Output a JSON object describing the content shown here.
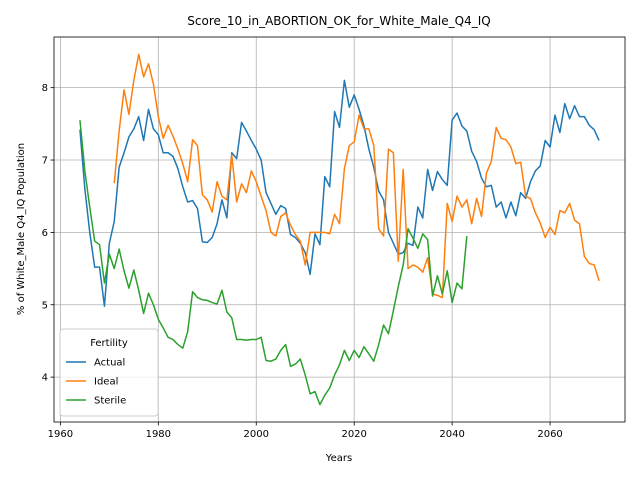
{
  "chart_data": {
    "type": "line",
    "title": "Score_10_in_ABORTION_OK_for_White_Male_Q4_IQ",
    "x_label": "Years",
    "y_label": "% of White_Male Q4_IQ Population",
    "x": [
      1964,
      1965,
      1966,
      1967,
      1968,
      1969,
      1970,
      1971,
      1972,
      1973,
      1974,
      1975,
      1976,
      1977,
      1978,
      1979,
      1980,
      1981,
      1982,
      1983,
      1984,
      1985,
      1986,
      1987,
      1988,
      1989,
      1990,
      1991,
      1992,
      1993,
      1994,
      1995,
      1996,
      1997,
      1998,
      1999,
      2000,
      2001,
      2002,
      2003,
      2004,
      2005,
      2006,
      2007,
      2008,
      2009,
      2010,
      2011,
      2012,
      2013,
      2014,
      2015,
      2016,
      2017,
      2018,
      2019,
      2020,
      2021,
      2022,
      2023,
      2024,
      2025,
      2026,
      2027,
      2028,
      2029,
      2030,
      2031,
      2032,
      2033,
      2034,
      2035,
      2036,
      2037,
      2038,
      2039,
      2040,
      2041,
      2042,
      2043,
      2044,
      2045,
      2046,
      2047,
      2048,
      2049,
      2050,
      2051,
      2052,
      2053,
      2054,
      2055,
      2056,
      2057,
      2058,
      2059,
      2060,
      2061,
      2062,
      2063,
      2064,
      2065,
      2066,
      2067,
      2068,
      2069,
      2070
    ],
    "series": [
      {
        "name": "Actual",
        "color": "#1f77b4",
        "values": [
          7.42,
          6.6,
          6.0,
          5.52,
          5.52,
          4.98,
          5.85,
          6.15,
          6.9,
          7.1,
          7.32,
          7.43,
          7.6,
          7.27,
          7.7,
          7.43,
          7.35,
          7.1,
          7.1,
          7.05,
          6.88,
          6.63,
          6.42,
          6.44,
          6.33,
          5.87,
          5.86,
          5.93,
          6.12,
          6.45,
          6.2,
          7.1,
          7.02,
          7.52,
          7.4,
          7.27,
          7.15,
          7.0,
          6.55,
          6.4,
          6.25,
          6.37,
          6.33,
          5.97,
          5.93,
          5.85,
          5.72,
          5.42,
          5.98,
          5.83,
          6.77,
          6.63,
          7.67,
          7.45,
          8.1,
          7.73,
          7.9,
          7.7,
          7.47,
          7.15,
          6.9,
          6.57,
          6.45,
          6.0,
          5.85,
          5.7,
          5.72,
          5.85,
          5.82,
          6.35,
          6.2,
          6.87,
          6.58,
          6.84,
          6.73,
          6.65,
          7.55,
          7.65,
          7.47,
          7.4,
          7.12,
          6.98,
          6.75,
          6.63,
          6.65,
          6.35,
          6.42,
          6.2,
          6.42,
          6.23,
          6.55,
          6.47,
          6.7,
          6.85,
          6.92,
          7.27,
          7.18,
          7.62,
          7.38,
          7.78,
          7.57,
          7.75,
          7.6,
          7.6,
          7.48,
          7.42,
          7.27
        ]
      },
      {
        "name": "Ideal",
        "color": "#ff7f0e",
        "values": [
          null,
          null,
          null,
          null,
          null,
          null,
          null,
          6.68,
          7.4,
          7.97,
          7.63,
          8.1,
          8.46,
          8.15,
          8.33,
          8.05,
          7.6,
          7.3,
          7.48,
          7.33,
          7.15,
          6.95,
          6.7,
          7.28,
          7.2,
          6.52,
          6.45,
          6.28,
          6.7,
          6.5,
          6.45,
          7.07,
          6.42,
          6.67,
          6.55,
          6.85,
          6.7,
          6.5,
          6.3,
          6.0,
          5.95,
          6.22,
          6.27,
          6.1,
          5.97,
          5.88,
          5.55,
          6.0,
          6.0,
          6.0,
          6.0,
          5.98,
          6.25,
          6.12,
          6.88,
          7.2,
          7.25,
          7.62,
          7.43,
          7.43,
          7.2,
          6.05,
          5.95,
          7.15,
          7.1,
          5.6,
          6.87,
          5.5,
          5.55,
          5.52,
          5.45,
          5.65,
          5.15,
          5.13,
          5.1,
          6.4,
          6.15,
          6.5,
          6.35,
          6.45,
          6.12,
          6.47,
          6.22,
          6.82,
          6.98,
          7.45,
          7.3,
          7.28,
          7.18,
          6.95,
          6.97,
          6.5,
          6.47,
          6.27,
          6.13,
          5.93,
          6.07,
          5.97,
          6.3,
          6.27,
          6.4,
          6.17,
          6.12,
          5.67,
          5.57,
          5.55,
          5.33
        ]
      },
      {
        "name": "Sterile",
        "color": "#2ca02c",
        "values": [
          7.55,
          6.85,
          6.35,
          5.88,
          5.83,
          5.3,
          5.7,
          5.5,
          5.77,
          5.47,
          5.23,
          5.48,
          5.2,
          4.88,
          5.16,
          5.0,
          4.8,
          4.68,
          4.55,
          4.52,
          4.45,
          4.4,
          4.63,
          5.18,
          5.1,
          5.07,
          5.06,
          5.03,
          5.01,
          5.2,
          4.9,
          4.82,
          4.52,
          4.52,
          4.51,
          4.52,
          4.52,
          4.55,
          4.23,
          4.22,
          4.25,
          4.37,
          4.45,
          4.15,
          4.18,
          4.25,
          4.03,
          3.77,
          3.8,
          3.62,
          3.75,
          3.85,
          4.03,
          4.17,
          4.37,
          4.23,
          4.37,
          4.27,
          4.42,
          4.32,
          4.22,
          4.45,
          4.72,
          4.6,
          4.92,
          5.25,
          5.55,
          6.05,
          5.92,
          5.78,
          5.98,
          5.9,
          5.12,
          5.4,
          5.15,
          5.47,
          5.03,
          5.3,
          5.22,
          5.95,
          null,
          null,
          null,
          null,
          null,
          null,
          null,
          null,
          null,
          null,
          null,
          null,
          null,
          null,
          null,
          null,
          null,
          null,
          null,
          null,
          null,
          null,
          null,
          null,
          null,
          null,
          null
        ]
      }
    ],
    "xlim": [
      1958.7,
      2075.3
    ],
    "ylim": [
      3.38,
      8.7
    ],
    "xticks": [
      1960,
      1980,
      2000,
      2020,
      2040,
      2060
    ],
    "yticks": [
      4,
      5,
      6,
      7,
      8
    ],
    "grid": true,
    "legend_title": "Fertility",
    "legend_position": "lower left"
  }
}
